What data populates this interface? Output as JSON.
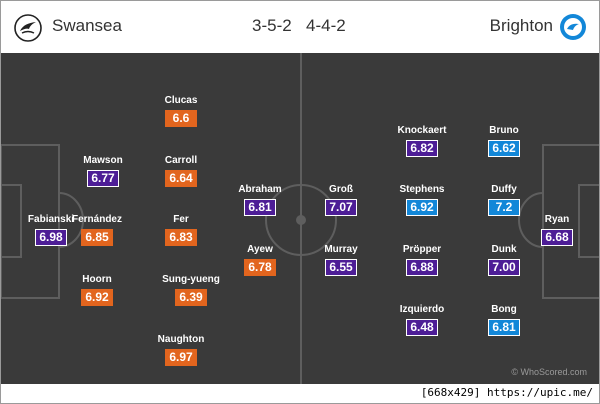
{
  "header": {
    "home_team": "Swansea",
    "home_formation": "3-5-2",
    "away_formation": "4-4-2",
    "away_team": "Brighton"
  },
  "colors": {
    "pitch": "#3a3a3a",
    "home_rating": "#e2651e",
    "away_rating": "#1287d8",
    "best_rating": "#4d1d96"
  },
  "home_players": [
    {
      "name": "Fabianski",
      "rating": "6.98",
      "style": "purple"
    },
    {
      "name": "Mawson",
      "rating": "6.77",
      "style": "purple"
    },
    {
      "name": "Fernández",
      "rating": "6.85",
      "style": "orange"
    },
    {
      "name": "Hoorn",
      "rating": "6.92",
      "style": "orange"
    },
    {
      "name": "Clucas",
      "rating": "6.6",
      "style": "orange"
    },
    {
      "name": "Carroll",
      "rating": "6.64",
      "style": "orange"
    },
    {
      "name": "Fer",
      "rating": "6.83",
      "style": "orange"
    },
    {
      "name": "Sung-yueng",
      "rating": "6.39",
      "style": "orange"
    },
    {
      "name": "Naughton",
      "rating": "6.97",
      "style": "orange"
    },
    {
      "name": "Abraham",
      "rating": "6.81",
      "style": "purple"
    },
    {
      "name": "Ayew",
      "rating": "6.78",
      "style": "orange"
    }
  ],
  "away_players": [
    {
      "name": "Groß",
      "rating": "7.07",
      "style": "purple"
    },
    {
      "name": "Murray",
      "rating": "6.55",
      "style": "purple"
    },
    {
      "name": "Knockaert",
      "rating": "6.82",
      "style": "purple"
    },
    {
      "name": "Stephens",
      "rating": "6.92",
      "style": "blue"
    },
    {
      "name": "Pröpper",
      "rating": "6.88",
      "style": "purple"
    },
    {
      "name": "Izquierdo",
      "rating": "6.48",
      "style": "purple"
    },
    {
      "name": "Bruno",
      "rating": "6.62",
      "style": "blue"
    },
    {
      "name": "Duffy",
      "rating": "7.2",
      "style": "blue"
    },
    {
      "name": "Dunk",
      "rating": "7.00",
      "style": "purple"
    },
    {
      "name": "Bong",
      "rating": "6.81",
      "style": "blue"
    },
    {
      "name": "Ryan",
      "rating": "6.68",
      "style": "purple"
    }
  ],
  "credit": "© WhoScored.com",
  "watermark": "[668x429] https://upic.me/"
}
